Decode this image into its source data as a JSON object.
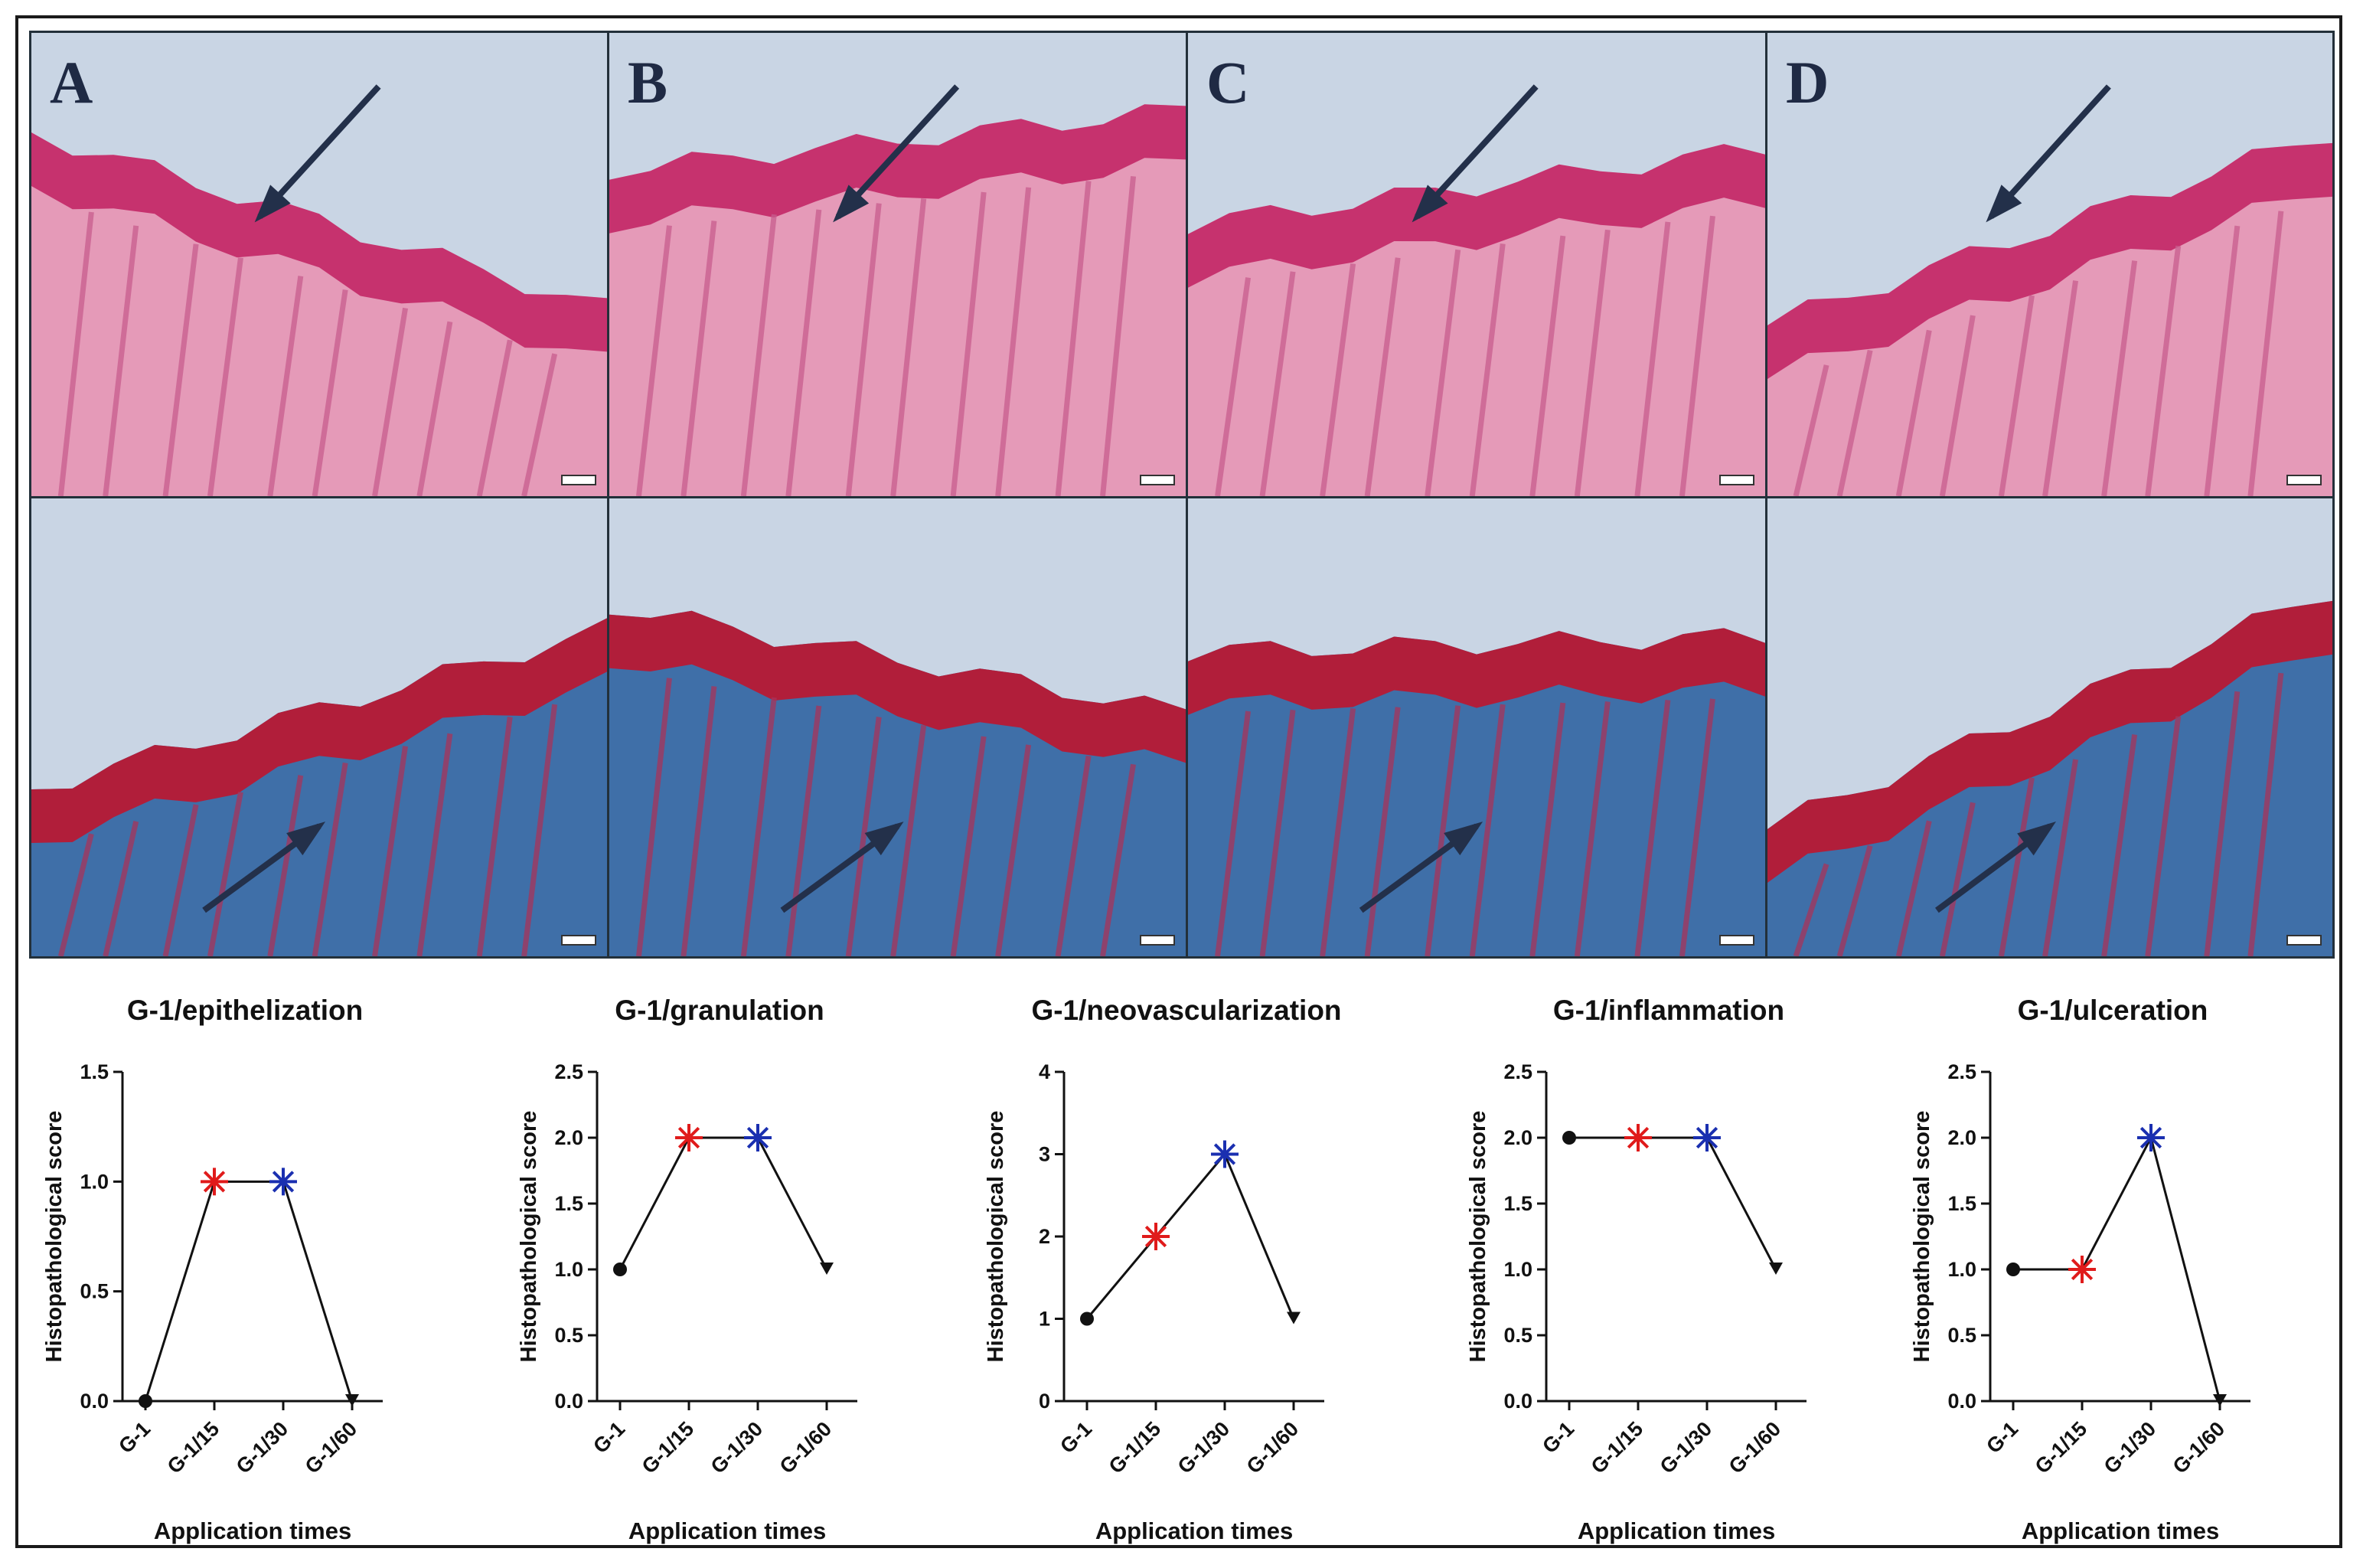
{
  "panels": [
    {
      "letter": "A",
      "stain": "HE"
    },
    {
      "letter": "B",
      "stain": "HE"
    },
    {
      "letter": "C",
      "stain": "HE"
    },
    {
      "letter": "D",
      "stain": "HE"
    },
    {
      "letter": "",
      "stain": "MT"
    },
    {
      "letter": "",
      "stain": "MT"
    },
    {
      "letter": "",
      "stain": "MT"
    },
    {
      "letter": "",
      "stain": "MT"
    }
  ],
  "colors": {
    "he_tissue": "#e59ab8",
    "he_epidermis": "#c6326e",
    "mt_collagen": "#3f6fa8",
    "mt_epidermis": "#b11e3a",
    "background": "#c9d5e4",
    "arrow": "#23304a",
    "marker_red": "#e01b1b",
    "marker_blue": "#1a2fb0",
    "marker_black": "#111111"
  },
  "chart_data": [
    {
      "type": "line",
      "title": "G-1/epithelization",
      "xlabel": "Application times",
      "ylabel": "Histopathological score",
      "categories": [
        "G-1",
        "G-1/15",
        "G-1/30",
        "G-1/60"
      ],
      "values": [
        0,
        1,
        1,
        0
      ],
      "markers": [
        "dot",
        "star-red",
        "star-blue",
        "triangle-down"
      ],
      "ylim": [
        0,
        1.5
      ],
      "yticks": [
        "0.0",
        "0.5",
        "1.0",
        "1.5"
      ]
    },
    {
      "type": "line",
      "title": "G-1/granulation",
      "xlabel": "Application times",
      "ylabel": "Histopathological score",
      "categories": [
        "G-1",
        "G-1/15",
        "G-1/30",
        "G-1/60"
      ],
      "values": [
        1,
        2,
        2,
        1
      ],
      "markers": [
        "dot",
        "star-red",
        "star-blue",
        "triangle-down"
      ],
      "ylim": [
        0,
        2.5
      ],
      "yticks": [
        "0.0",
        "0.5",
        "1.0",
        "1.5",
        "2.0",
        "2.5"
      ]
    },
    {
      "type": "line",
      "title": "G-1/neovascularization",
      "xlabel": "Application times",
      "ylabel": "Histopathological score",
      "categories": [
        "G-1",
        "G-1/15",
        "G-1/30",
        "G-1/60"
      ],
      "values": [
        1,
        2,
        3,
        1
      ],
      "markers": [
        "dot",
        "star-red",
        "star-blue",
        "triangle-down"
      ],
      "ylim": [
        0,
        4
      ],
      "yticks": [
        "0",
        "1",
        "2",
        "3",
        "4"
      ]
    },
    {
      "type": "line",
      "title": "G-1/inflammation",
      "xlabel": "Application times",
      "ylabel": "Histopathological score",
      "categories": [
        "G-1",
        "G-1/15",
        "G-1/30",
        "G-1/60"
      ],
      "values": [
        2,
        2,
        2,
        1
      ],
      "markers": [
        "dot",
        "star-red",
        "star-blue",
        "triangle-down"
      ],
      "ylim": [
        0,
        2.5
      ],
      "yticks": [
        "0.0",
        "0.5",
        "1.0",
        "1.5",
        "2.0",
        "2.5"
      ]
    },
    {
      "type": "line",
      "title": "G-1/ulceration",
      "xlabel": "Application times",
      "ylabel": "Histopathological score",
      "categories": [
        "G-1",
        "G-1/15",
        "G-1/30",
        "G-1/60"
      ],
      "values": [
        1,
        1,
        2,
        0
      ],
      "markers": [
        "dot",
        "star-red",
        "star-blue",
        "triangle-down"
      ],
      "ylim": [
        0,
        2.5
      ],
      "yticks": [
        "0.0",
        "0.5",
        "1.0",
        "1.5",
        "2.0",
        "2.5"
      ]
    }
  ]
}
